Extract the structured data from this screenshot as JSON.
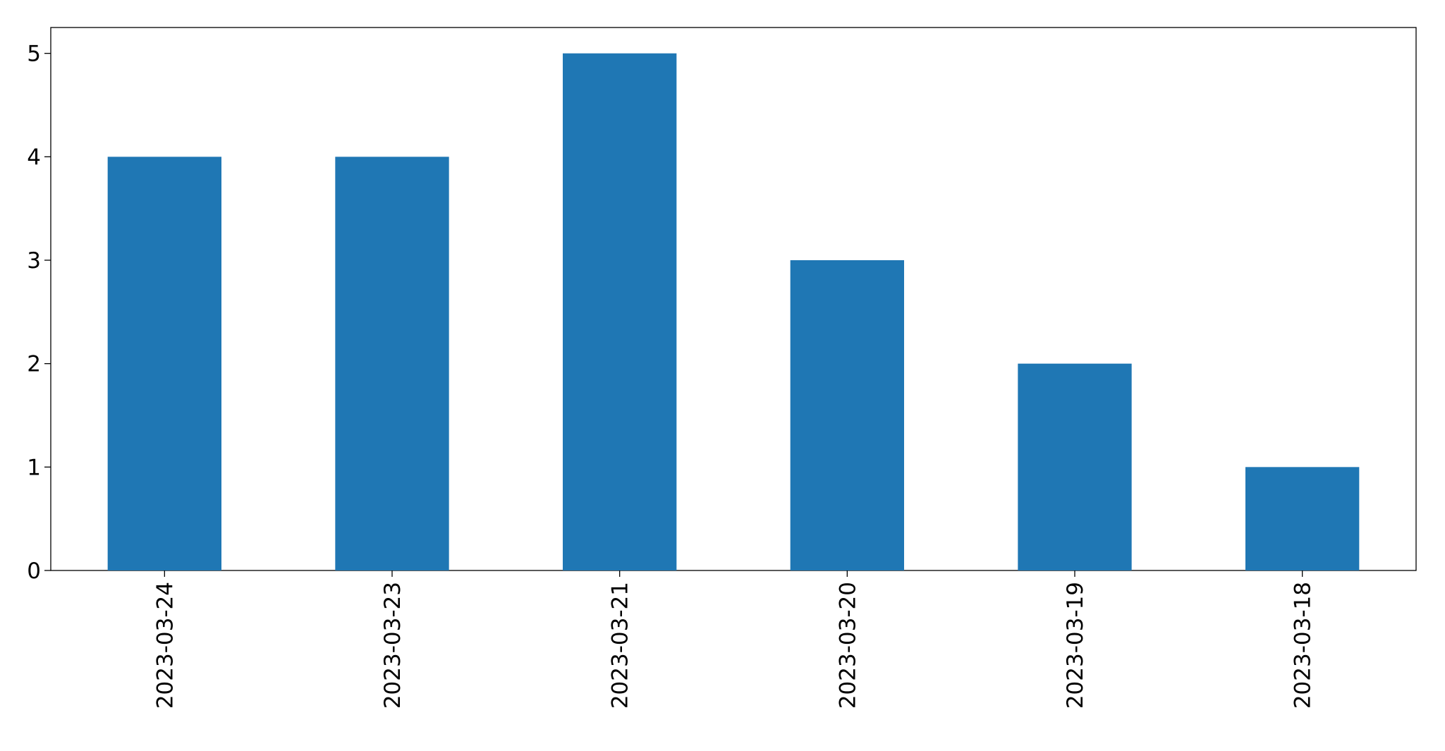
{
  "chart_data": {
    "type": "bar",
    "categories": [
      "2023-03-24",
      "2023-03-23",
      "2023-03-21",
      "2023-03-20",
      "2023-03-19",
      "2023-03-18"
    ],
    "values": [
      4,
      4,
      5,
      3,
      2,
      1
    ],
    "color": "#1f77b4",
    "ylim": [
      0,
      5.25
    ],
    "yticks": [
      0,
      1,
      2,
      3,
      4,
      5
    ],
    "grid": false
  }
}
